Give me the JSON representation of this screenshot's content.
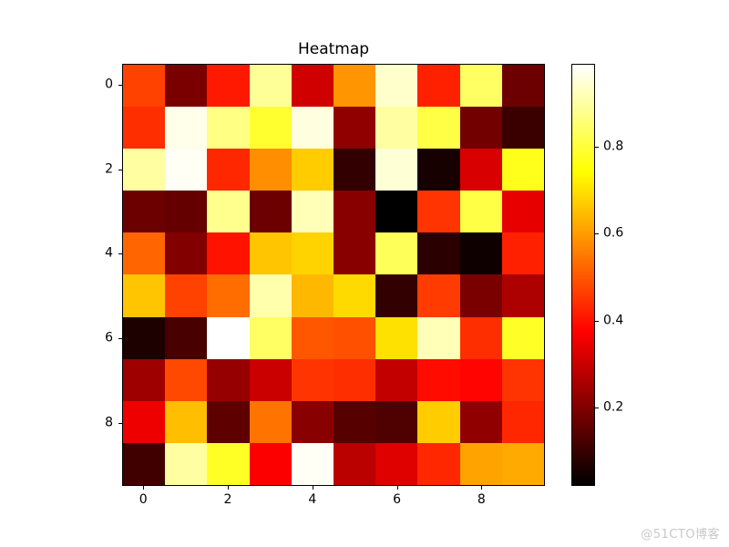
{
  "figure": {
    "background": "#ffffff",
    "watermark": "@51CTO博客",
    "watermark_color": "#c8c8c8"
  },
  "chart_data": {
    "type": "heatmap",
    "title": "Heatmap",
    "xlabel": "",
    "ylabel": "",
    "rows": 10,
    "cols": 10,
    "vmin": 0.02,
    "vmax": 0.99,
    "colormap": "hot",
    "colormap_stops": [
      {
        "pos": 0.0,
        "color": "#000000"
      },
      {
        "pos": 0.365,
        "color": "#ff0000"
      },
      {
        "pos": 0.746,
        "color": "#ffff00"
      },
      {
        "pos": 1.0,
        "color": "#ffffff"
      }
    ],
    "values": [
      [
        0.47,
        0.19,
        0.41,
        0.89,
        0.31,
        0.59,
        0.94,
        0.42,
        0.84,
        0.17
      ],
      [
        0.44,
        0.97,
        0.87,
        0.79,
        0.96,
        0.22,
        0.9,
        0.81,
        0.18,
        0.1
      ],
      [
        0.9,
        0.98,
        0.43,
        0.58,
        0.67,
        0.09,
        0.95,
        0.05,
        0.32,
        0.77
      ],
      [
        0.17,
        0.16,
        0.88,
        0.17,
        0.92,
        0.21,
        0.02,
        0.45,
        0.81,
        0.34
      ],
      [
        0.52,
        0.2,
        0.4,
        0.66,
        0.68,
        0.21,
        0.83,
        0.08,
        0.04,
        0.42
      ],
      [
        0.66,
        0.47,
        0.53,
        0.91,
        0.64,
        0.69,
        0.09,
        0.46,
        0.19,
        0.26
      ],
      [
        0.06,
        0.12,
        0.99,
        0.84,
        0.5,
        0.49,
        0.7,
        0.92,
        0.44,
        0.78
      ],
      [
        0.24,
        0.48,
        0.23,
        0.3,
        0.45,
        0.44,
        0.29,
        0.39,
        0.38,
        0.45
      ],
      [
        0.35,
        0.65,
        0.15,
        0.54,
        0.21,
        0.14,
        0.13,
        0.67,
        0.22,
        0.43
      ],
      [
        0.11,
        0.9,
        0.78,
        0.37,
        0.98,
        0.28,
        0.33,
        0.43,
        0.61,
        0.62
      ]
    ],
    "x_ticks": [
      {
        "label": "0",
        "value": 0
      },
      {
        "label": "2",
        "value": 2
      },
      {
        "label": "4",
        "value": 4
      },
      {
        "label": "6",
        "value": 6
      },
      {
        "label": "8",
        "value": 8
      }
    ],
    "y_ticks": [
      {
        "label": "0",
        "value": 0
      },
      {
        "label": "2",
        "value": 2
      },
      {
        "label": "4",
        "value": 4
      },
      {
        "label": "6",
        "value": 6
      },
      {
        "label": "8",
        "value": 8
      }
    ],
    "colorbar": {
      "position": "right",
      "ticks": [
        {
          "label": "0.2",
          "value": 0.2
        },
        {
          "label": "0.4",
          "value": 0.4
        },
        {
          "label": "0.6",
          "value": 0.6
        },
        {
          "label": "0.8",
          "value": 0.8
        }
      ]
    },
    "grid": false,
    "legend": false
  }
}
